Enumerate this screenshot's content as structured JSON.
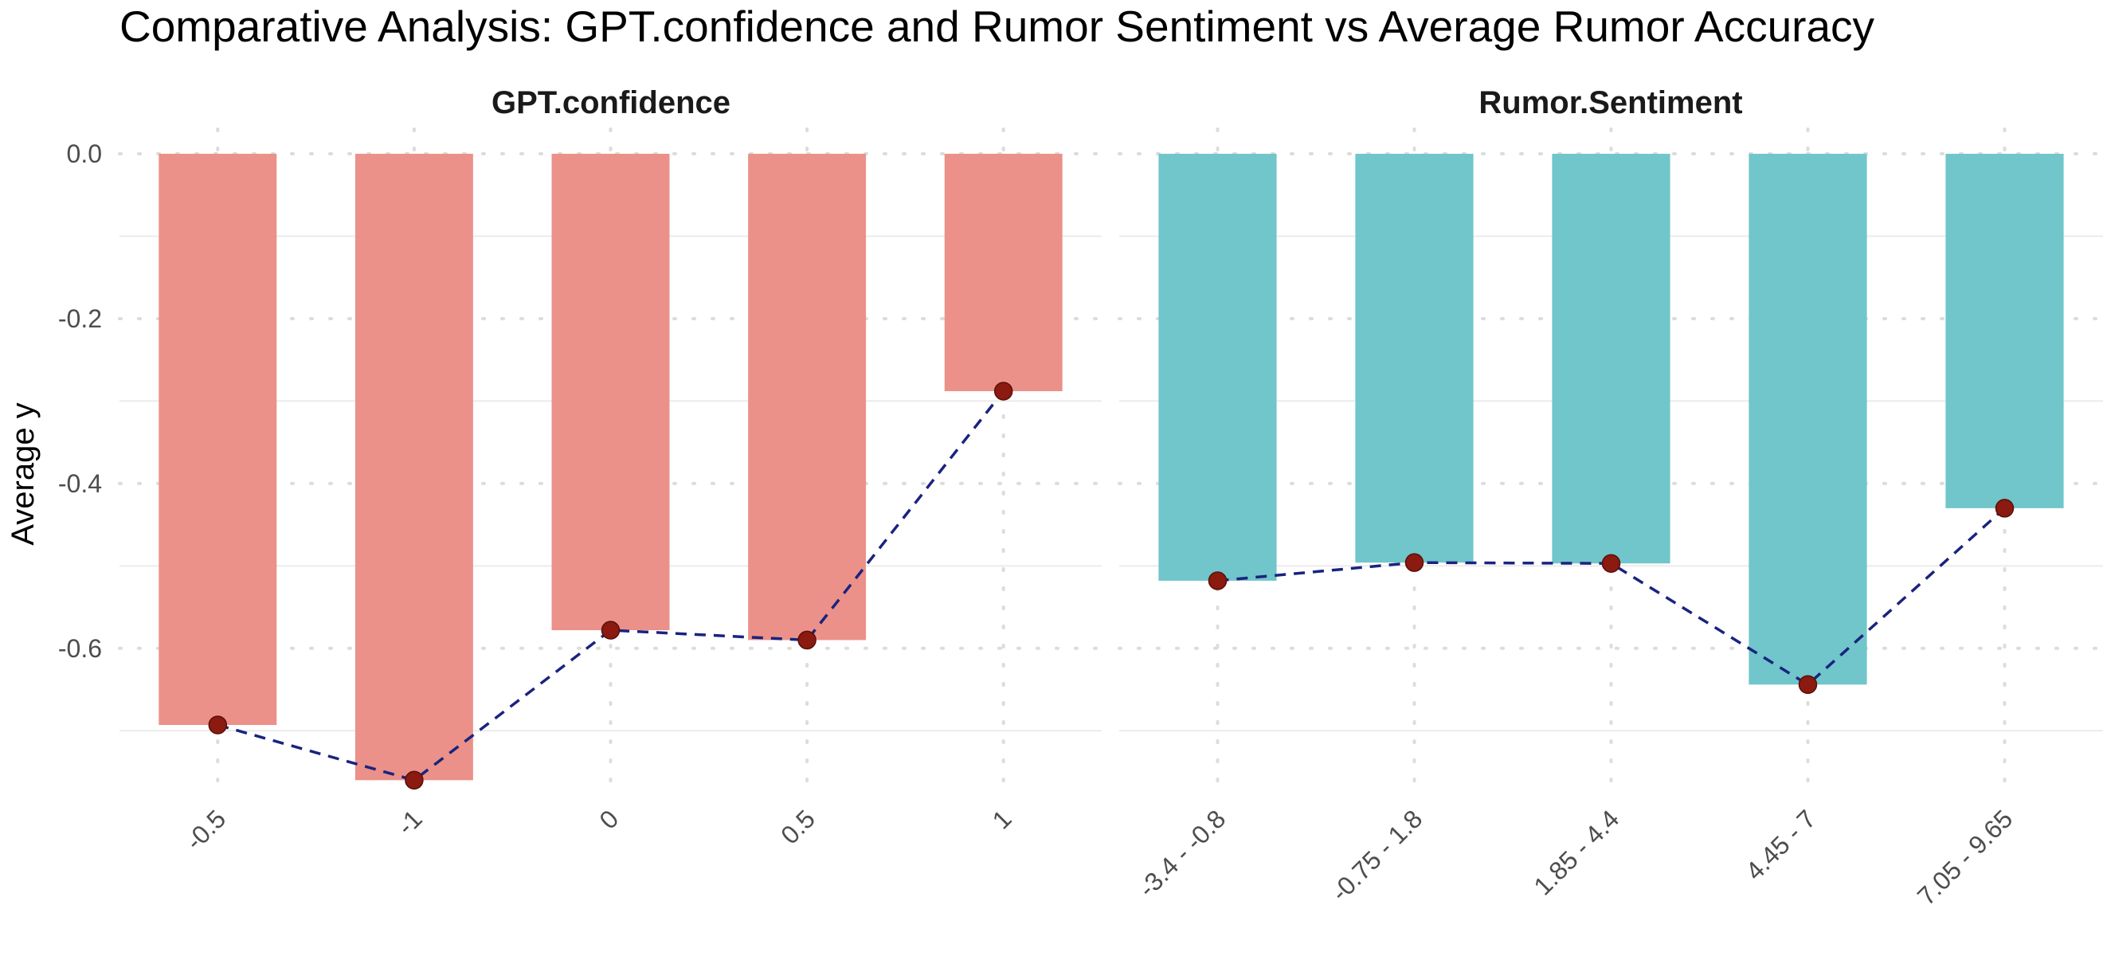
{
  "chart_data": {
    "type": "bar",
    "title": "Comparative Analysis: GPT.confidence and Rumor Sentiment vs Average Rumor Accuracy",
    "ylabel": "Average y",
    "xlabel": "",
    "ylim": [
      -0.78,
      0.03
    ],
    "yticks": [
      0.0,
      -0.2,
      -0.4,
      -0.6
    ],
    "ytick_labels": [
      "0.0",
      "-0.2",
      "-0.4",
      "-0.6"
    ],
    "grid": true,
    "legend": "none",
    "overlay": {
      "type": "line",
      "style": "dashed",
      "color": "#1a237e",
      "point_color": "#8b1a10"
    },
    "facets": [
      {
        "name": "GPT.confidence",
        "bar_color": "#eb9189",
        "categories": [
          "-0.5",
          "-1",
          "0",
          "0.5",
          "1"
        ],
        "values": [
          -0.693,
          -0.76,
          -0.578,
          -0.59,
          -0.288
        ]
      },
      {
        "name": "Rumor.Sentiment",
        "bar_color": "#70c6ca",
        "categories": [
          "-3.4 - -0.8",
          "-0.75 - 1.8",
          "1.85 - 4.4",
          "4.45 - 7",
          "7.05 - 9.65"
        ],
        "values": [
          -0.518,
          -0.496,
          -0.497,
          -0.644,
          -0.43
        ]
      }
    ]
  }
}
